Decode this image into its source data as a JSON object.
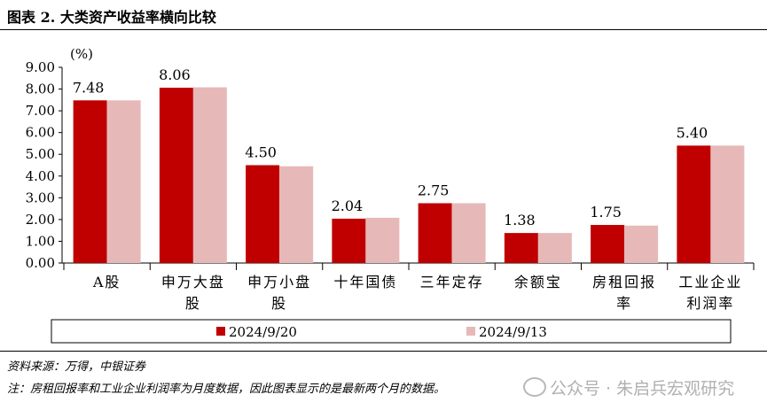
{
  "header": {
    "title": "图表 2.  大类资产收益率横向比较"
  },
  "chart_data": {
    "type": "bar",
    "ylabel": "(%)",
    "ylim": [
      0,
      9
    ],
    "yticks": [
      "0.00",
      "1.00",
      "2.00",
      "3.00",
      "4.00",
      "5.00",
      "6.00",
      "7.00",
      "8.00",
      "9.00"
    ],
    "categories": [
      [
        "A股"
      ],
      [
        "申万大盘",
        "股"
      ],
      [
        "申万小盘",
        "股"
      ],
      [
        "十年国债"
      ],
      [
        "三年定存"
      ],
      [
        "余额宝"
      ],
      [
        "房租回报",
        "率"
      ],
      [
        "工业企业",
        "利润率"
      ]
    ],
    "series": [
      {
        "name": "2024/9/20",
        "color": "#c00000",
        "values": [
          7.48,
          8.06,
          4.5,
          2.04,
          2.75,
          1.38,
          1.75,
          5.4
        ],
        "labels": [
          "7.48",
          "8.06",
          "4.50",
          "2.04",
          "2.75",
          "1.38",
          "1.75",
          "5.40"
        ]
      },
      {
        "name": "2024/9/13",
        "color": "#e6b9b8",
        "values": [
          7.48,
          8.08,
          4.45,
          2.08,
          2.75,
          1.38,
          1.72,
          5.4
        ]
      }
    ],
    "legend_position": "bottom",
    "grid": false
  },
  "footer": {
    "source": "资料来源：万得，中银证券",
    "note": "注：房租回报率和工业企业利润率为月度数据，因此图表显示的是最新两个月的数据。",
    "watermark": "公众号 · 朱启兵宏观研究"
  }
}
